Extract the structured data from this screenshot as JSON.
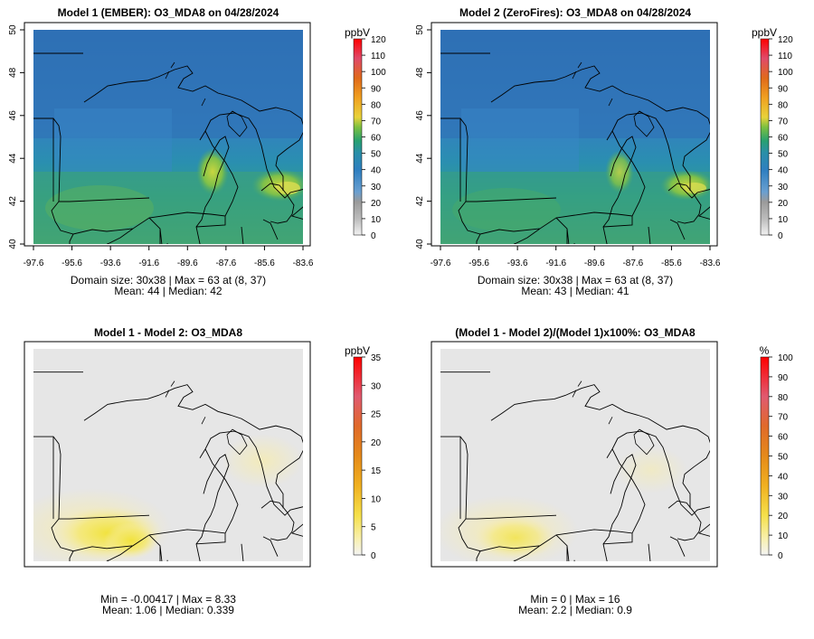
{
  "chart_data": [
    {
      "type": "heatmap",
      "title": "Model 1 (EMBER): O3_MDA8 on 04/28/2024",
      "colorbar_unit": "ppbV",
      "colorbar_ticks": [
        "0",
        "10",
        "20",
        "30",
        "40",
        "50",
        "60",
        "70",
        "80",
        "90",
        "100",
        "110",
        "120"
      ],
      "x_ticks": [
        "-97.6",
        "-95.6",
        "-93.6",
        "-91.6",
        "-89.6",
        "-87.6",
        "-85.6",
        "-83.6"
      ],
      "y_ticks": [
        "40",
        "42",
        "44",
        "46",
        "48",
        "50"
      ],
      "xlim": [
        -97.6,
        -83.6
      ],
      "ylim": [
        40,
        50
      ],
      "stats_line1": "Domain size: 30x38 | Max = 63 at (8, 37)",
      "stats_line2": "Mean: 44 |  Median: 42",
      "domain_size": [
        30,
        38
      ],
      "max": 63,
      "mean": 44,
      "median": 42
    },
    {
      "type": "heatmap",
      "title": "Model 2 (ZeroFires): O3_MDA8 on 04/28/2024",
      "colorbar_unit": "ppbV",
      "colorbar_ticks": [
        "0",
        "10",
        "20",
        "30",
        "40",
        "50",
        "60",
        "70",
        "80",
        "90",
        "100",
        "110",
        "120"
      ],
      "x_ticks": [
        "-97.6",
        "-95.6",
        "-93.6",
        "-91.6",
        "-89.6",
        "-87.6",
        "-85.6",
        "-83.6"
      ],
      "y_ticks": [
        "40",
        "42",
        "44",
        "46",
        "48",
        "50"
      ],
      "xlim": [
        -97.6,
        -83.6
      ],
      "ylim": [
        40,
        50
      ],
      "stats_line1": "Domain size: 30x38 | Max = 63 at (8, 37)",
      "stats_line2": "Mean: 43 |  Median: 41",
      "domain_size": [
        30,
        38
      ],
      "max": 63,
      "mean": 43,
      "median": 41
    },
    {
      "type": "heatmap",
      "title": "Model 1 - Model 2: O3_MDA8",
      "colorbar_unit": "ppbV",
      "colorbar_ticks": [
        "0",
        "5",
        "10",
        "15",
        "20",
        "25",
        "30",
        "35"
      ],
      "stats_line1": "Min = -0.00417 | Max = 8.33",
      "stats_line2": "Mean: 1.06 |  Median: 0.339",
      "min": -0.00417,
      "max": 8.33,
      "mean": 1.06,
      "median": 0.339
    },
    {
      "type": "heatmap",
      "title": "(Model 1 - Model 2)/(Model 1)x100%: O3_MDA8",
      "colorbar_unit": "%",
      "colorbar_ticks": [
        "0",
        "10",
        "20",
        "30",
        "40",
        "50",
        "60",
        "70",
        "80",
        "90",
        "100"
      ],
      "stats_line1": "Min = 0 | Max = 16",
      "stats_line2": "Mean: 2.2 |  Median: 0.9",
      "min": 0,
      "max": 16,
      "mean": 2.2,
      "median": 0.9
    }
  ],
  "colors": {
    "low_blue": "#2f6fb8",
    "mid_blue": "#2f85c0",
    "teal": "#259a9a",
    "green": "#3cae5a",
    "yellow_green": "#9ec64a",
    "diff_background": "#e6e6e6",
    "diff_yellow": "#f3e23a",
    "colorbar_top": "#ff0000"
  }
}
